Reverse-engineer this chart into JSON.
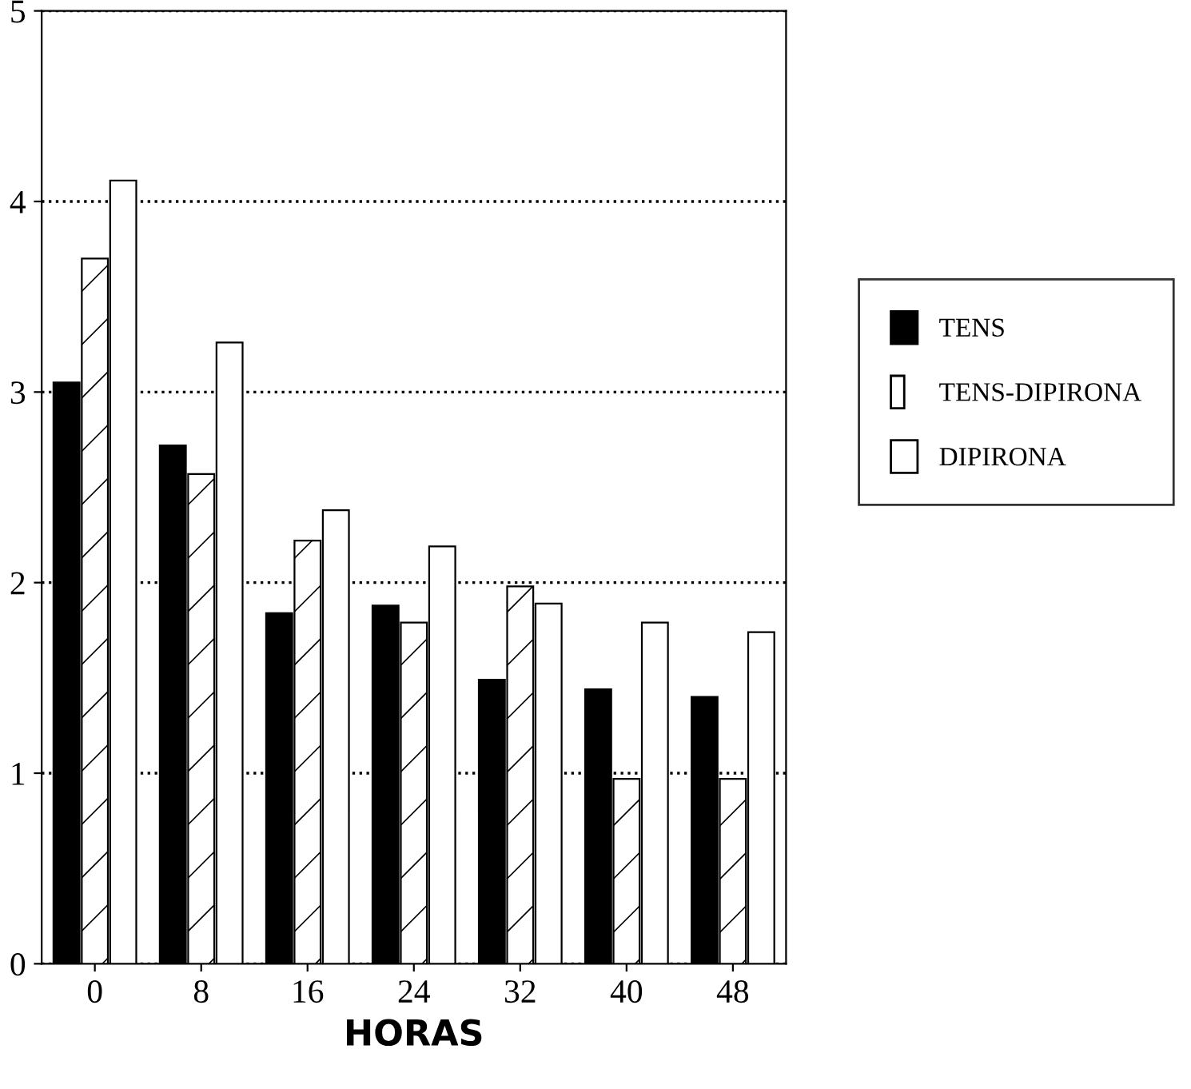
{
  "chart_data": {
    "type": "bar",
    "xlabel": "HORAS",
    "categories": [
      "0",
      "8",
      "16",
      "24",
      "32",
      "40",
      "48"
    ],
    "series": [
      {
        "name": "TENS",
        "color": "#000000",
        "values": [
          3.05,
          2.72,
          1.84,
          1.88,
          1.49,
          1.44,
          1.4
        ]
      },
      {
        "name": "TENS-DIPIRONA",
        "color": "#ffffff",
        "values": [
          3.7,
          2.57,
          2.22,
          1.79,
          1.98,
          0.97,
          0.97
        ]
      },
      {
        "name": "DIPIRONA",
        "color": "#ffffff",
        "values": [
          4.11,
          3.26,
          2.38,
          2.19,
          1.89,
          1.79,
          1.74
        ]
      }
    ],
    "ylim": [
      0,
      5
    ],
    "yticks": [
      0,
      1,
      2,
      3,
      4,
      5
    ],
    "grid": "y",
    "legend": "right"
  }
}
